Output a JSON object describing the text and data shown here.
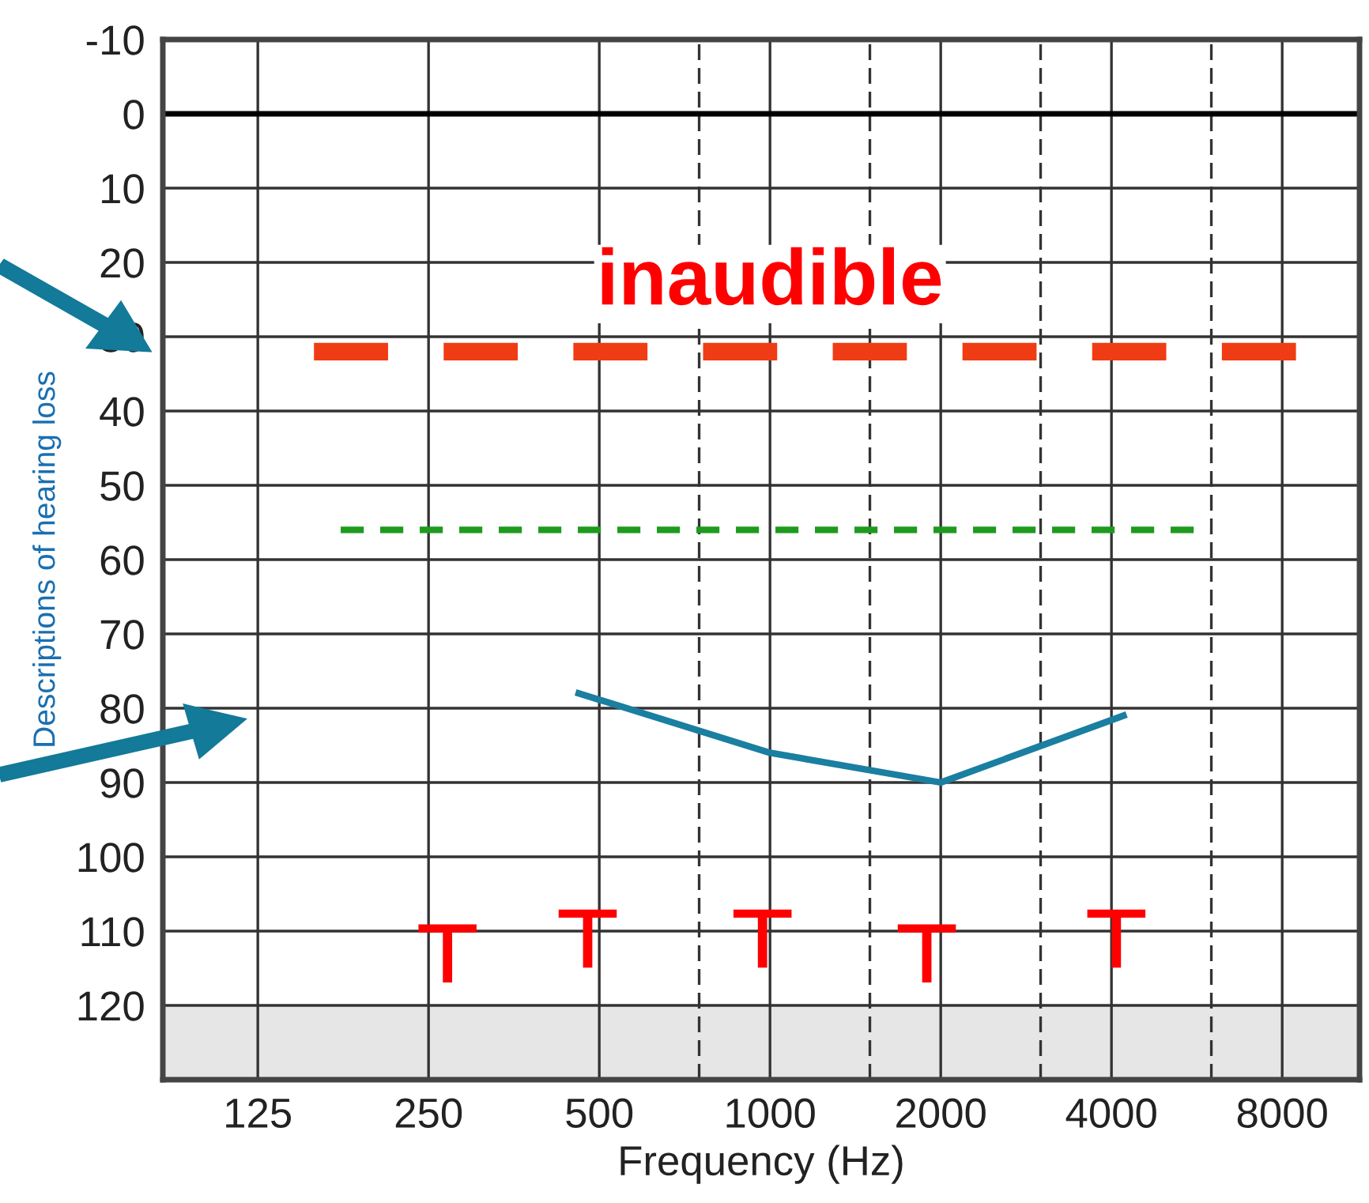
{
  "chart_data": {
    "type": "line",
    "xlabel": "Frequency (Hz)",
    "ylabel": "Descriptions of hearing loss",
    "log": "x",
    "xlim": [
      85,
      10950
    ],
    "ylim": [
      130,
      -10
    ],
    "xticks": [
      125,
      250,
      500,
      {
        "value": 750,
        "label": null
      },
      1000,
      {
        "value": 1500,
        "label": null
      },
      2000,
      {
        "value": 3000,
        "label": null
      },
      4000,
      {
        "value": 6000,
        "label": null
      },
      8000
    ],
    "yticks": [
      {
        "value": -10,
        "label": "-10"
      },
      0,
      10,
      20,
      30,
      40,
      50,
      60,
      70,
      80,
      90,
      100,
      110,
      120
    ],
    "grid": true,
    "series": [
      {
        "color": "#f03c14",
        "x": [
          157,
          8460
        ],
        "values": [
          32,
          32
        ],
        "line_style": "dashed"
      },
      {
        "color": "#1e9a1e",
        "x": [
          175,
          5700
        ],
        "values": [
          56,
          56
        ],
        "line_style": "dashed"
      },
      {
        "color": "#1a7fa0",
        "x": [
          460,
          1000,
          2000,
          4200
        ],
        "values": [
          78,
          86,
          90,
          81
        ],
        "line_style": "solid"
      },
      {
        "type": "scatter",
        "color": "#ff0000",
        "x": [
          270,
          477,
          970,
          1890,
          4080
        ],
        "values": [
          113,
          111,
          111,
          113,
          111
        ]
      }
    ],
    "ref_lines": [
      {
        "axis": "y",
        "value": 0,
        "label": null,
        "color": "#000000"
      }
    ],
    "bands": [
      {
        "axis": "y",
        "from": 120,
        "to": 130,
        "label": null,
        "color": "#e6e6e6"
      }
    ],
    "annotations": [
      {
        "text": "inaudible",
        "x": 1000,
        "y": 32
      }
    ]
  }
}
